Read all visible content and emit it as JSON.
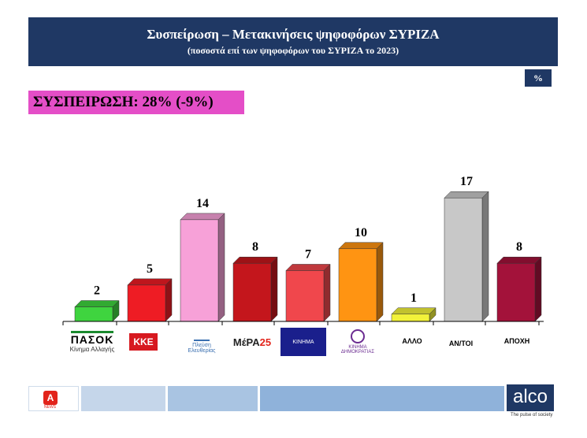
{
  "header": {
    "title": "Συσπείρωση – Μετακινήσεις ψηφοφόρων ΣΥΡΙΖΑ",
    "subtitle": "(ποσοστά επί των ψηφοφόρων του ΣΥΡΙΖΑ το 2023)"
  },
  "unit_badge": "%",
  "cohesion_label": "ΣΥΣΠΕΙΡΩΣΗ: 28% (-9%)",
  "chart_data": {
    "type": "bar",
    "categories": [
      "ΠΑΣΟΚ",
      "ΚΚΕ",
      "Πλεύση Ελευθερίας",
      "ΜέΡΑ25",
      "Κίνημα",
      "Κίνημα Δημοκρατίας",
      "ΑΛΛΟ",
      "ΑΝ/ΤΟΙ",
      "ΑΠΟΧΗ"
    ],
    "values": [
      2,
      5,
      14,
      8,
      7,
      10,
      1,
      17,
      8
    ],
    "colors": [
      "#3fd43f",
      "#ee1c24",
      "#f7a1d8",
      "#c4161c",
      "#f0474c",
      "#ff9412",
      "#f2f23a",
      "#c8c8c8",
      "#a3123a"
    ],
    "ylim": [
      0,
      18
    ]
  },
  "logos": {
    "pasok_name": "ΠΑΣΟΚ",
    "pasok_sub": "Κίνημα Αλλαγής",
    "kke": "ΚΚΕ",
    "plefs": "Πλεύση Ελευθερίας",
    "mera_a": "ΜέΡΑ",
    "mera_b": "25",
    "kinima": "ΚΙΝΗΜΑ",
    "kd": "ΚΙΝΗΜΑ ΔΗΜΟΚΡΑΤΙΑΣ"
  },
  "text_categories": {
    "other": "ΑΛΛΟ",
    "independents": "ΑΝ/ΤΟΙ",
    "abstain": "ΑΠΟΧΗ"
  },
  "footer": {
    "alpha_icon": "Α",
    "alpha_tag": "NEWS",
    "alco": "alco",
    "alco_tag": "The pulse of society"
  }
}
